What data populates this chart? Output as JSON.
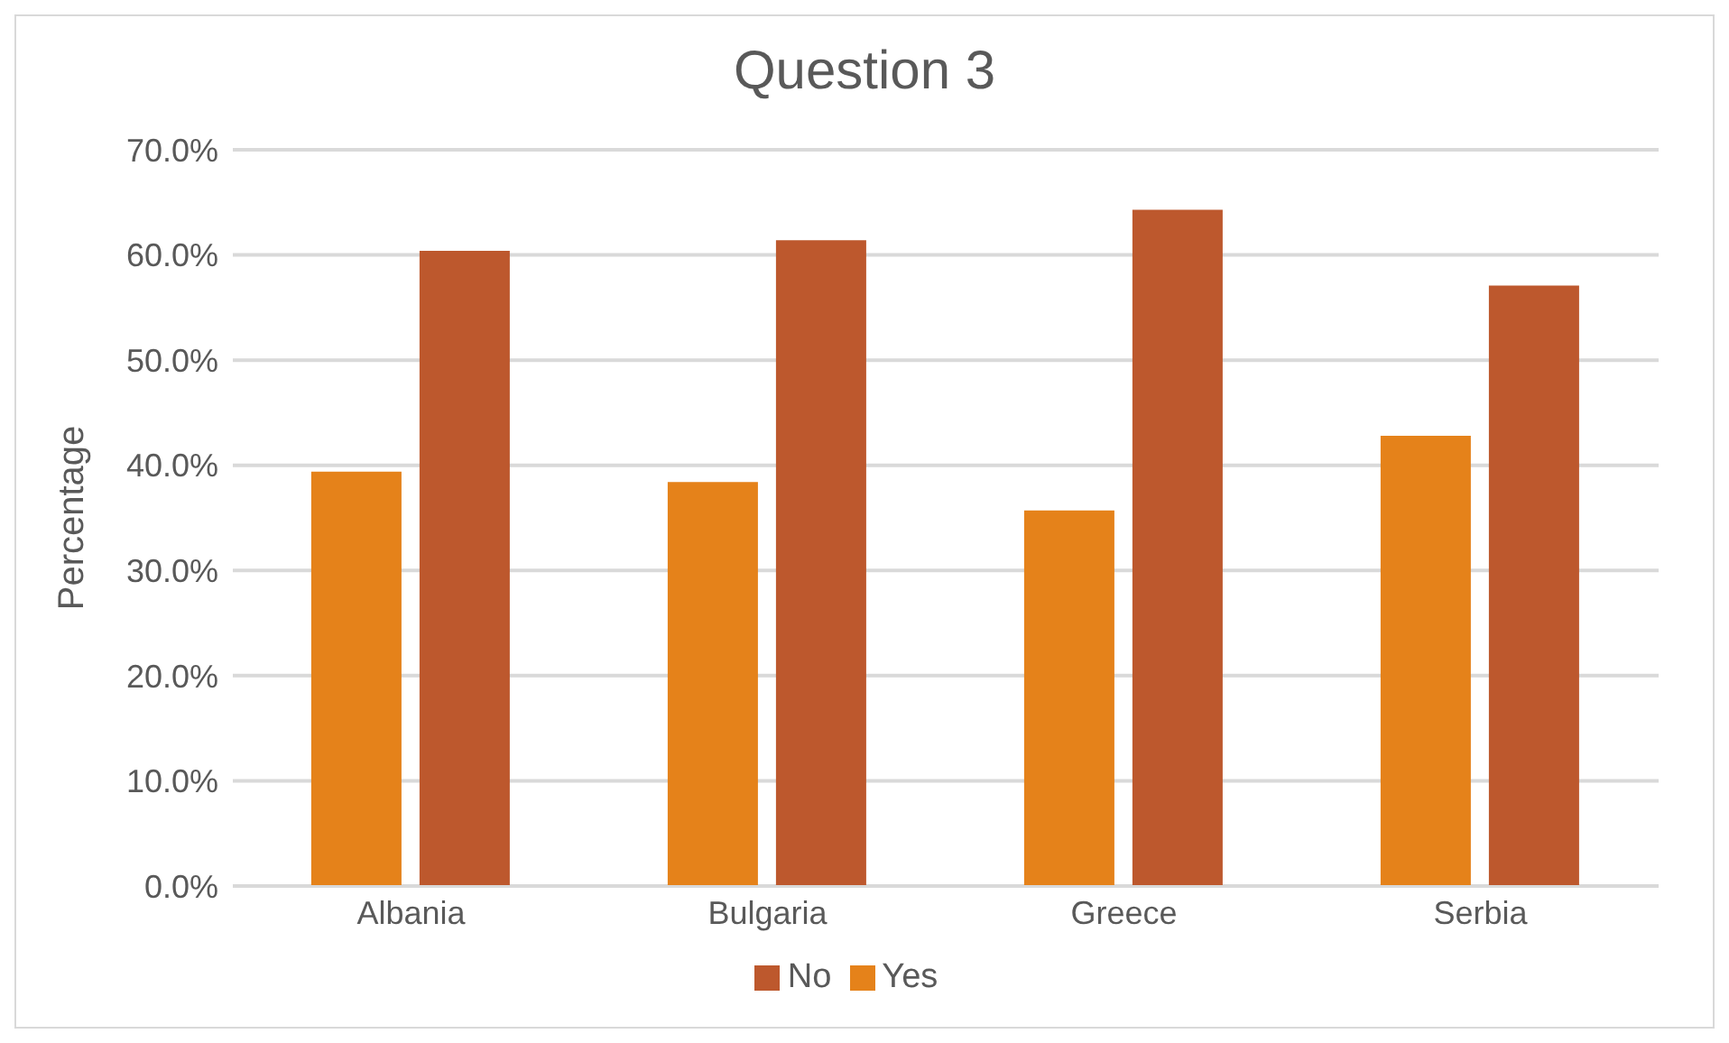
{
  "chart_data": {
    "type": "bar",
    "title": "Question 3",
    "ylabel": "Percentage",
    "categories": [
      "Albania",
      "Bulgaria",
      "Greece",
      "Serbia"
    ],
    "series": [
      {
        "name": "Yes",
        "color": "#e5821a",
        "values": [
          39.4,
          38.4,
          35.7,
          42.8
        ]
      },
      {
        "name": "No",
        "color": "#bd582d",
        "values": [
          60.4,
          61.4,
          64.3,
          57.1
        ]
      }
    ],
    "ylim": [
      0,
      70
    ],
    "yticks": [
      {
        "value": 0,
        "label": "0.0%"
      },
      {
        "value": 10,
        "label": "10.0%"
      },
      {
        "value": 20,
        "label": "20.0%"
      },
      {
        "value": 30,
        "label": "30.0%"
      },
      {
        "value": 40,
        "label": "40.0%"
      },
      {
        "value": 50,
        "label": "50.0%"
      },
      {
        "value": 60,
        "label": "60.0%"
      },
      {
        "value": 70,
        "label": "70.0%"
      }
    ],
    "grid": "y",
    "legend": "bottom"
  }
}
